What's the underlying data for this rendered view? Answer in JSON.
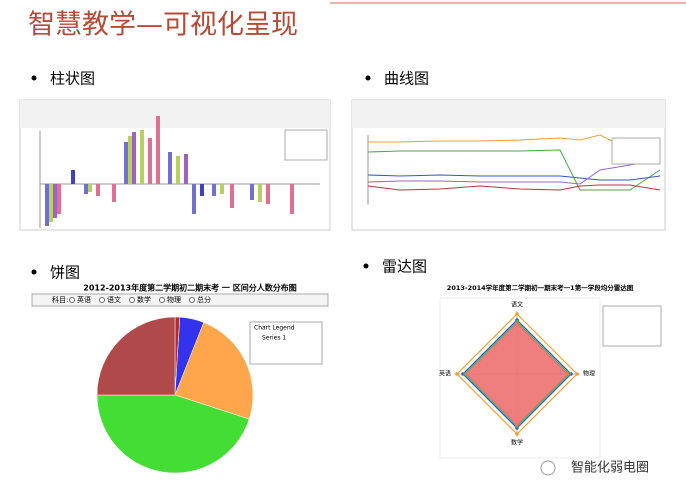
{
  "header": {
    "title": "智慧教学—可视化呈现"
  },
  "sections": [
    {
      "heading": "柱状图"
    },
    {
      "heading": "曲线图"
    },
    {
      "heading": "饼图"
    },
    {
      "heading": "雷达图"
    }
  ],
  "pie": {
    "title": "2012-2013年度第二学期初二期末考 一 区间分人数分布图",
    "filter_label": "科目:",
    "options": [
      "英语",
      "语文",
      "数学",
      "物理",
      "总分"
    ],
    "legend_title": "Chart Legend",
    "legend_series": "Series 1",
    "values": [
      1,
      5,
      24,
      45,
      25
    ],
    "colors": [
      "#b03030",
      "#3333ee",
      "#ffa64d",
      "#44dd33",
      "#b04a4a"
    ]
  },
  "radar": {
    "title": "2013-2014学年度第二学期初一期末考一1第一学段均分雷达图",
    "axes": [
      "语文",
      "物理",
      "数学",
      "英语"
    ],
    "rlim": [
      0,
      100
    ],
    "series": [
      {
        "color": "#f0a030",
        "values": [
          100,
          100,
          100,
          100
        ]
      },
      {
        "color": "#3355cc",
        "values": [
          90,
          90,
          90,
          90
        ]
      },
      {
        "color": "#44aa44",
        "values": [
          87,
          87,
          87,
          87
        ]
      },
      {
        "color": "#f07070",
        "values": [
          84,
          84,
          84,
          84
        ]
      }
    ]
  },
  "footer": {
    "brand": "智能化弱电圈"
  }
}
